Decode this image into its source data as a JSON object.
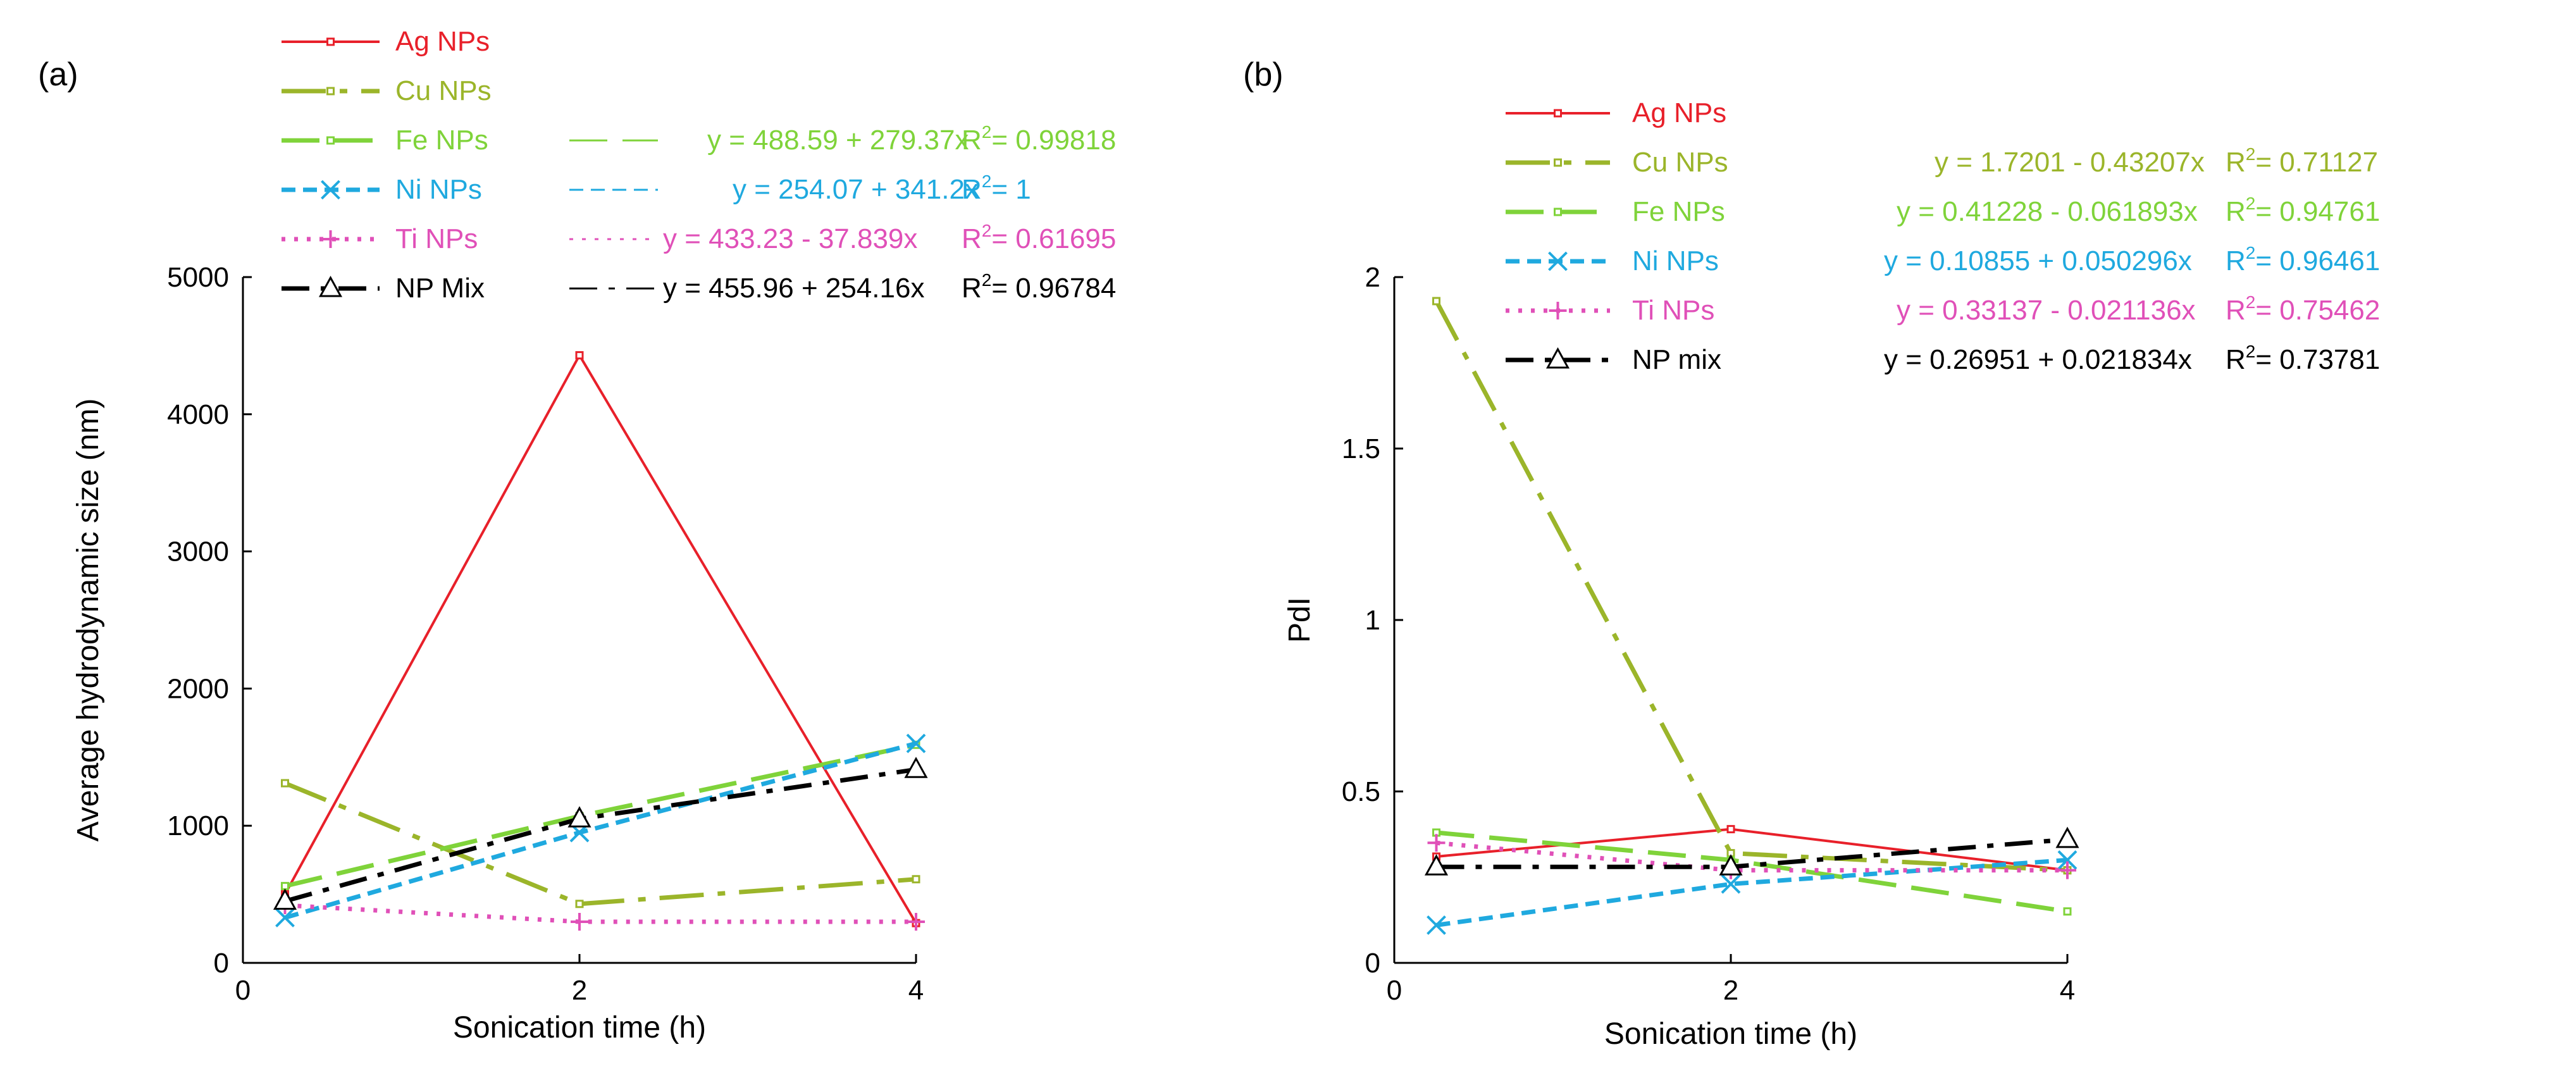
{
  "chart_data": [
    {
      "panel_label": "(a)",
      "type": "line",
      "title": "",
      "xlabel": "Sonication time (h)",
      "ylabel": "Average hydrodynamic size (nm)",
      "xlim": [
        0,
        4
      ],
      "ylim": [
        0,
        5000
      ],
      "xticks": [
        0,
        2,
        4
      ],
      "yticks": [
        0,
        1000,
        2000,
        3000,
        4000,
        5000
      ],
      "series": [
        {
          "name": "Ag NPs",
          "color": "#e8202a",
          "dash": "solid",
          "marker": "square",
          "x": [
            0.25,
            2,
            4
          ],
          "y": [
            500,
            4430,
            290
          ]
        },
        {
          "name": "Cu NPs",
          "color": "#9bb52a",
          "dash": "long-dash-dot",
          "marker": "square",
          "x": [
            0.25,
            2,
            4
          ],
          "y": [
            1310,
            430,
            610
          ]
        },
        {
          "name": "Fe NPs",
          "color": "#7fd33a",
          "dash": "long-dash",
          "marker": "square",
          "x": [
            0.25,
            2,
            4
          ],
          "y": [
            560,
            1070,
            1590
          ]
        },
        {
          "name": "Ni NPs",
          "color": "#1fa9df",
          "dash": "short-dash",
          "marker": "x",
          "x": [
            0.25,
            2,
            4
          ],
          "y": [
            330,
            950,
            1600
          ]
        },
        {
          "name": "Ti NPs",
          "color": "#e050b8",
          "dash": "dot",
          "marker": "plus",
          "x": [
            0.25,
            2,
            4
          ],
          "y": [
            420,
            300,
            300
          ]
        },
        {
          "name": "NP Mix",
          "color": "#000000",
          "dash": "dash-dot",
          "marker": "triangle",
          "x": [
            0.25,
            2,
            4
          ],
          "y": [
            450,
            1050,
            1410
          ]
        }
      ],
      "equations": [
        {
          "series": "Fe NPs",
          "text": "y = 488.59 + 279.37x",
          "r2_label": "R",
          "r2_sup": "2",
          "r2_value": "= 0.99818",
          "color": "#7fd33a"
        },
        {
          "series": "Ni NPs",
          "text": "y = 254.07 + 341.2x",
          "r2_label": "R",
          "r2_sup": "2",
          "r2_value": "= 1",
          "color": "#1fa9df"
        },
        {
          "series": "Ti NPs",
          "text": "y = 433.23 - 37.839x",
          "r2_label": "R",
          "r2_sup": "2",
          "r2_value": "= 0.61695",
          "color": "#e050b8"
        },
        {
          "series": "NP Mix",
          "text": "y = 455.96 + 254.16x",
          "r2_label": "R",
          "r2_sup": "2",
          "r2_value": "= 0.96784",
          "color": "#000000"
        }
      ]
    },
    {
      "panel_label": "(b)",
      "type": "line",
      "title": "",
      "xlabel": "Sonication time (h)",
      "ylabel": "PdI",
      "xlim": [
        0,
        4
      ],
      "ylim": [
        0,
        2
      ],
      "xticks": [
        0,
        2,
        4
      ],
      "yticks": [
        0,
        0.5,
        1,
        1.5,
        2
      ],
      "series": [
        {
          "name": "Ag NPs",
          "color": "#e8202a",
          "dash": "solid",
          "marker": "square",
          "x": [
            0.25,
            2,
            4
          ],
          "y": [
            0.31,
            0.39,
            0.27
          ]
        },
        {
          "name": "Cu NPs",
          "color": "#9bb52a",
          "dash": "long-dash-dot",
          "marker": "square",
          "x": [
            0.25,
            2,
            4
          ],
          "y": [
            1.93,
            0.32,
            0.27
          ]
        },
        {
          "name": "Fe NPs",
          "color": "#7fd33a",
          "dash": "long-dash",
          "marker": "square",
          "x": [
            0.25,
            2,
            4
          ],
          "y": [
            0.38,
            0.3,
            0.15
          ]
        },
        {
          "name": "Ni NPs",
          "color": "#1fa9df",
          "dash": "short-dash",
          "marker": "x",
          "x": [
            0.25,
            2,
            4
          ],
          "y": [
            0.11,
            0.23,
            0.3
          ]
        },
        {
          "name": "Ti NPs",
          "color": "#e050b8",
          "dash": "dot",
          "marker": "plus",
          "x": [
            0.25,
            2,
            4
          ],
          "y": [
            0.35,
            0.27,
            0.27
          ]
        },
        {
          "name": "NP mix",
          "color": "#000000",
          "dash": "dash-dot",
          "marker": "triangle",
          "x": [
            0.25,
            2,
            4
          ],
          "y": [
            0.28,
            0.28,
            0.36
          ]
        }
      ],
      "equations": [
        {
          "series": "Cu NPs",
          "text": "y = 1.7201 - 0.43207x",
          "r2_label": "R",
          "r2_sup": "2",
          "r2_value": "= 0.71127",
          "color": "#9bb52a"
        },
        {
          "series": "Fe NPs",
          "text": "y = 0.41228 - 0.061893x",
          "r2_label": "R",
          "r2_sup": "2",
          "r2_value": "= 0.94761",
          "color": "#7fd33a"
        },
        {
          "series": "Ni NPs",
          "text": "y = 0.10855 + 0.050296x",
          "r2_label": "R",
          "r2_sup": "2",
          "r2_value": "= 0.96461",
          "color": "#1fa9df"
        },
        {
          "series": "Ti NPs",
          "text": "y = 0.33137 - 0.021136x",
          "r2_label": "R",
          "r2_sup": "2",
          "r2_value": "= 0.75462",
          "color": "#e050b8"
        },
        {
          "series": "NP mix",
          "text": "y = 0.26951 + 0.021834x",
          "r2_label": "R",
          "r2_sup": "2",
          "r2_value": "= 0.73781",
          "color": "#000000"
        }
      ]
    }
  ]
}
